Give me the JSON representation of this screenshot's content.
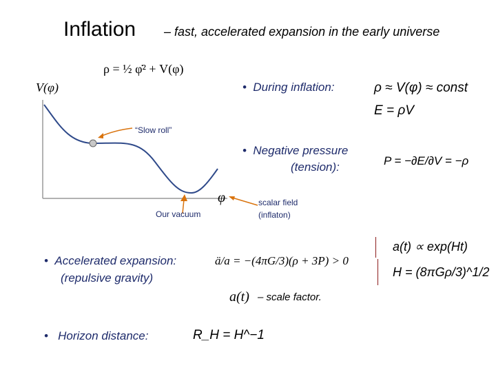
{
  "slide": {
    "title": "Inflation",
    "subtitle": "– fast, accelerated expansion in the early universe",
    "potential_axis_label": "V(φ)",
    "field_axis_label": "φ",
    "slow_roll_label": "“Slow roll”",
    "vacuum_label": "Our vacuum",
    "scalar_field_label": "scalar field",
    "inflaton_label": "(inflaton)",
    "bullet_during": "During inflation:",
    "bullet_pressure_1": "Negative pressure",
    "bullet_pressure_2": "(tension):",
    "bullet_accel_1": "Accelerated expansion:",
    "bullet_accel_2": "(repulsive gravity)",
    "scale_factor_label": "– scale factor.",
    "bullet_horizon": "Horizon distance:",
    "eq_energy_density": "ρ = ½ φ̇² + V(φ)",
    "eq_during": "ρ ≈ V(φ) ≈ const",
    "eq_energy": "E = ρV",
    "eq_pressure": "P = −∂E/∂V = −ρ",
    "eq_acceleration": "ä/a = −(4πG/3)(ρ + 3P) > 0",
    "eq_scale_factor_symbol": "a(t)",
    "eq_exp": "a(t) ∝ exp(Ht)",
    "eq_hubble": "H = (8πGρ/3)^1/2",
    "eq_horizon": "R_H = H^−1"
  }
}
